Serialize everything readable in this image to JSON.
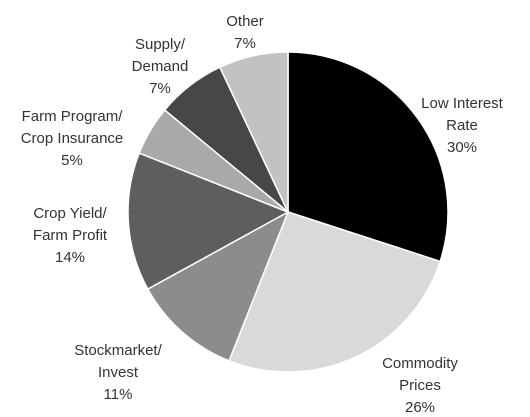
{
  "chart_data": {
    "type": "pie",
    "categories": [
      [
        "Low Interest",
        "Rate"
      ],
      [
        "Commodity",
        "Prices"
      ],
      [
        "Stockmarket/",
        "Invest"
      ],
      [
        "Crop Yield/",
        "Farm Profit"
      ],
      [
        "Farm Program/",
        "Crop Insurance"
      ],
      [
        "Supply/",
        "Demand"
      ],
      [
        "Other"
      ]
    ],
    "values": [
      30,
      26,
      11,
      14,
      5,
      7,
      7
    ],
    "value_labels": [
      "30%",
      "26%",
      "11%",
      "14%",
      "5%",
      "7%",
      "7%"
    ],
    "colors": [
      "#000000",
      "#d9d9d9",
      "#8c8c8c",
      "#5e5e5e",
      "#a9a9a9",
      "#474747",
      "#c2c2c2"
    ]
  }
}
